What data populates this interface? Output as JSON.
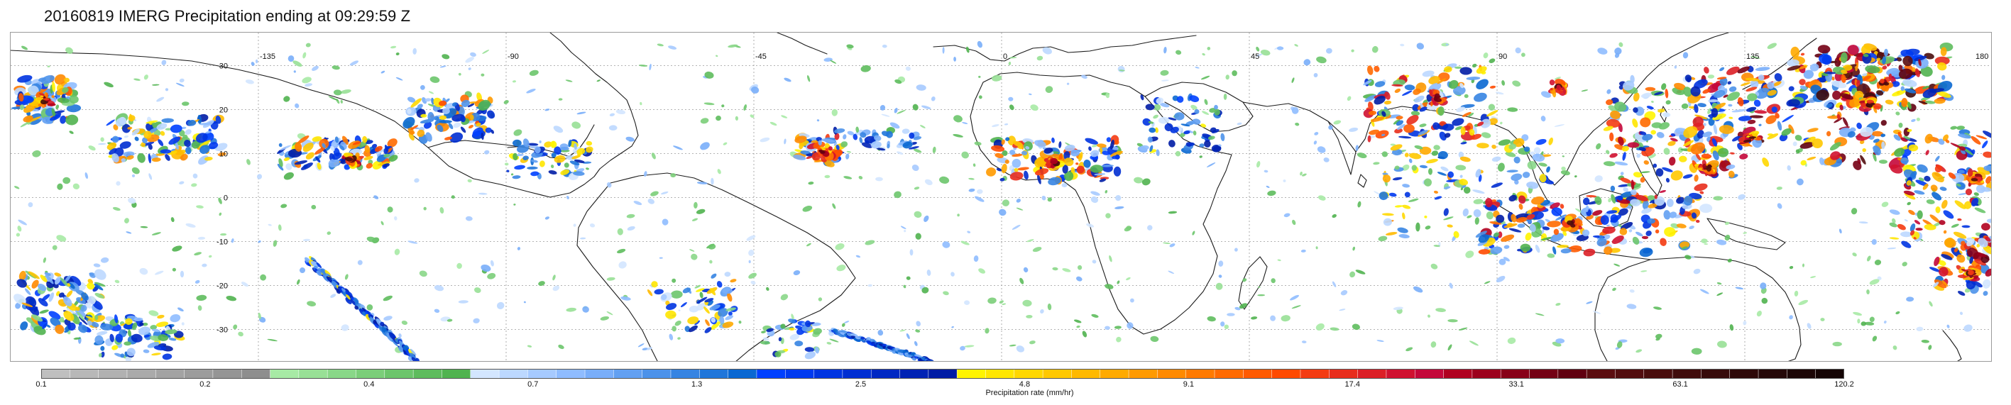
{
  "title": "20160819 IMERG Precipitation ending at 09:29:59 Z",
  "map": {
    "projection": "equirectangular",
    "extent": {
      "lon": [
        -180,
        180
      ],
      "lat": [
        -37.5,
        37.5
      ]
    },
    "gridlines": {
      "style": "dotted",
      "lon_step": 45,
      "lat_step": 10
    },
    "lon_tick_labels": [
      "-135",
      "-90",
      "-45",
      "0",
      "45",
      "90",
      "135",
      "180"
    ],
    "lat_tick_labels": [
      "30",
      "20",
      "10",
      "0",
      "-10",
      "-20",
      "-30"
    ],
    "land_mask": "coastline outlines",
    "background": "#ffffff"
  },
  "colorbar": {
    "label": "Precipitation rate (mm/hr)",
    "colors": [
      "#bfbfbf",
      "#b8b8b8",
      "#b1b1b1",
      "#aaaaaa",
      "#a3a3a3",
      "#9c9c9c",
      "#959595",
      "#8e8e8e",
      "#a7eaa5",
      "#98e096",
      "#89d788",
      "#7bce79",
      "#6cc56b",
      "#5ebc5d",
      "#50b34f",
      "#d3e6ff",
      "#bcd8ff",
      "#a6caff",
      "#8fbcff",
      "#79aefa",
      "#62a0f2",
      "#4c92ea",
      "#3684e2",
      "#2076da",
      "#0a68d2",
      "#0040ff",
      "#003af0",
      "#0034e1",
      "#002ed2",
      "#0028c3",
      "#0022b4",
      "#001ca5",
      "#fff400",
      "#ffe600",
      "#ffd700",
      "#ffc800",
      "#ffb900",
      "#ffaa00",
      "#ff9a00",
      "#ff8a00",
      "#ff7a00",
      "#ff6a00",
      "#ff5a00",
      "#ff4a00",
      "#f43b12",
      "#e82d1c",
      "#dc1f26",
      "#d01130",
      "#c4073a",
      "#b00020",
      "#9c001c",
      "#880018",
      "#740014",
      "#600010",
      "#5b0d10",
      "#520d0f",
      "#490d0d",
      "#400c0c",
      "#370b0b",
      "#2e0909",
      "#250808",
      "#1c0606",
      "#140404"
    ],
    "ticks": [
      "0.1",
      "0.2",
      "0.4",
      "0.7",
      "1.3",
      "2.5",
      "4.8",
      "9.1",
      "17.4",
      "33.1",
      "63.1",
      "120.2"
    ]
  }
}
